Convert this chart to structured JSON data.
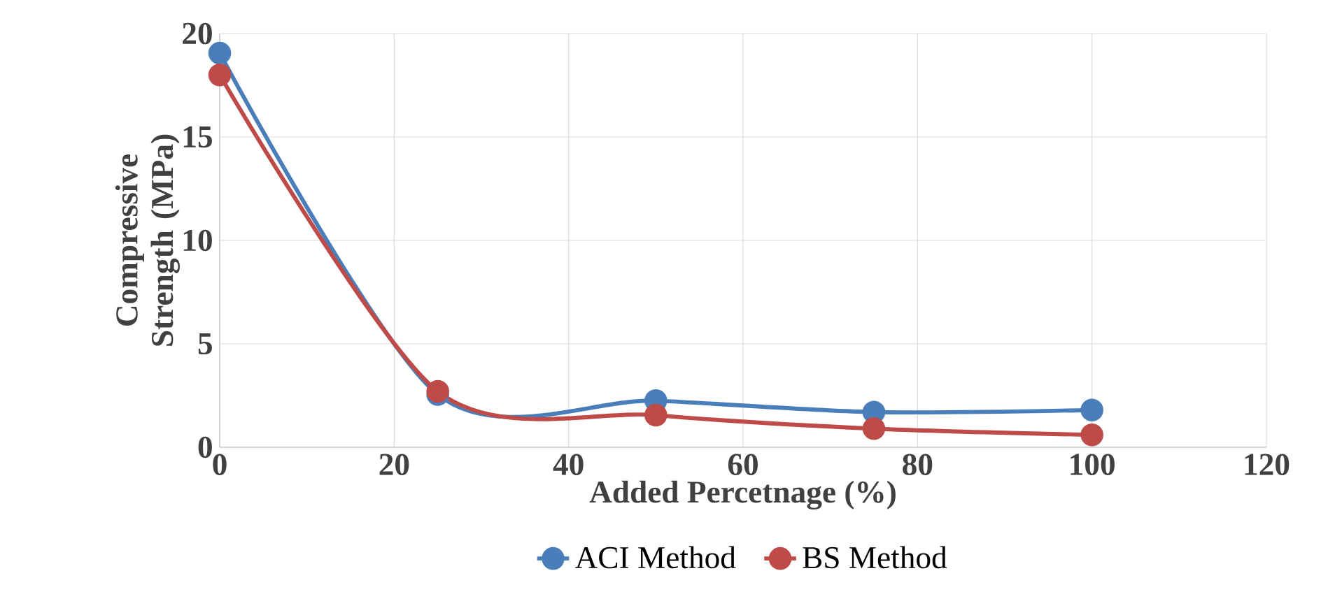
{
  "chart_data": {
    "type": "line",
    "xlabel": "Added Percetnage (%)",
    "ylabel": "Compressive Strength (MPa)",
    "x": [
      0,
      25,
      50,
      75,
      100
    ],
    "series": [
      {
        "name": "ACI Method",
        "color": "#4a7ebb",
        "values": [
          19.05,
          2.55,
          2.25,
          1.7,
          1.8
        ]
      },
      {
        "name": "BS Method",
        "color": "#be4b48",
        "values": [
          18.0,
          2.7,
          1.55,
          0.9,
          0.6
        ]
      }
    ],
    "xlim": [
      0,
      120
    ],
    "xticks": [
      0,
      20,
      40,
      60,
      80,
      100,
      120
    ],
    "ylim": [
      0,
      20
    ],
    "yticks": [
      0,
      5,
      10,
      15,
      20
    ],
    "grid": true,
    "legend": "bottom",
    "marker": "circle",
    "line_style": "solid"
  }
}
